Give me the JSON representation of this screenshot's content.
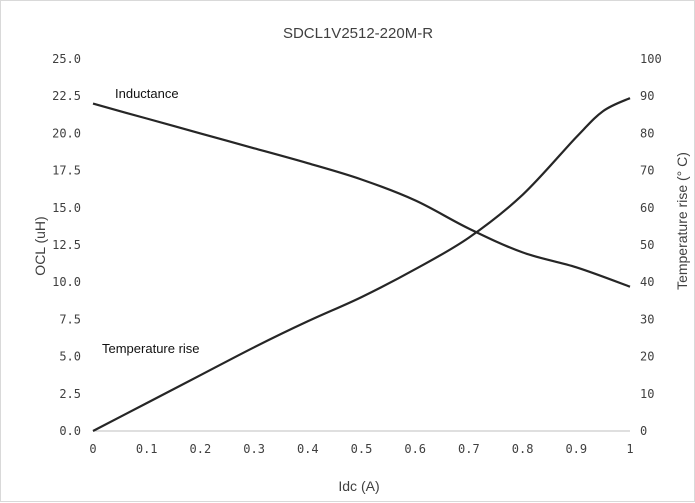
{
  "chart_data": {
    "type": "line",
    "title": "SDCL1V2512-220M-R",
    "xlabel": "Idc (A)",
    "ylabel_left": "OCL (uH)",
    "ylabel_right": "Temperature rise (° C)",
    "xlim": [
      0,
      1
    ],
    "ylim_left": [
      0,
      25
    ],
    "ylim_right": [
      0,
      100
    ],
    "x_ticks": [
      "0",
      "0.1",
      "0.2",
      "0.3",
      "0.4",
      "0.5",
      "0.6",
      "0.7",
      "0.8",
      "0.9",
      "1"
    ],
    "y_left_ticks": [
      "0.0",
      "2.5",
      "5.0",
      "7.5",
      "10.0",
      "12.5",
      "15.0",
      "17.5",
      "20.0",
      "22.5",
      "25.0"
    ],
    "y_right_ticks": [
      "0",
      "10",
      "20",
      "30",
      "40",
      "50",
      "60",
      "70",
      "80",
      "90",
      "100"
    ],
    "grid": false,
    "line_color": "#262626",
    "series": [
      {
        "name": "Inductance",
        "axis": "left",
        "x": [
          0,
          0.1,
          0.2,
          0.3,
          0.4,
          0.5,
          0.6,
          0.7,
          0.8,
          0.9,
          1.0
        ],
        "y": [
          22.0,
          21.0,
          20.0,
          19.0,
          18.0,
          16.9,
          15.5,
          13.6,
          12.0,
          11.0,
          9.7
        ]
      },
      {
        "name": "Temperature rise",
        "axis": "right",
        "x": [
          0,
          0.1,
          0.2,
          0.3,
          0.4,
          0.5,
          0.6,
          0.7,
          0.8,
          0.9,
          0.95,
          1.0
        ],
        "y": [
          0,
          7.5,
          15,
          22.5,
          29.5,
          36,
          43.5,
          52,
          63.5,
          79,
          86,
          89.5
        ]
      }
    ]
  }
}
